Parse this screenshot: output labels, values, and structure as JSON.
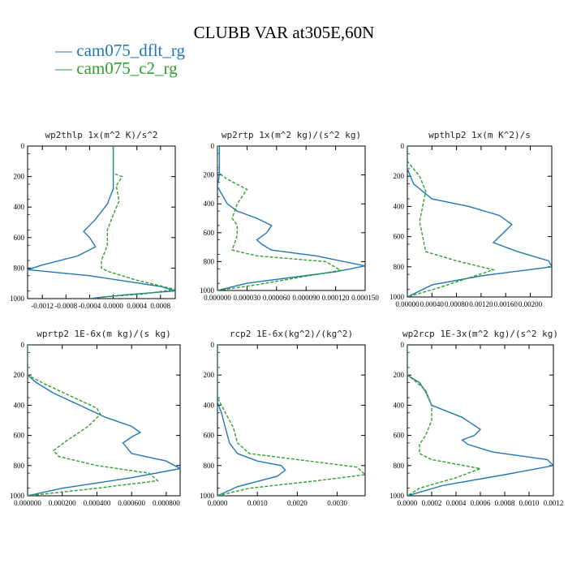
{
  "title": "CLUBB VAR at305E,60N",
  "legend": [
    {
      "label": "cam075_dflt_rg",
      "color": "#1f77b4",
      "dash": "solid"
    },
    {
      "label": "cam075_c2_rg",
      "color": "#2ca02c",
      "dash": "dashed"
    }
  ],
  "chart_data": [
    {
      "type": "line",
      "title": "wp2thlp  1x(m^2 K)/s^2",
      "xlim": [
        -0.00145,
        0.00105
      ],
      "ylim": [
        0,
        1000
      ],
      "y_inverted": true,
      "xticks": [
        -0.0012,
        -0.0008,
        -0.0004,
        0.0,
        0.0004,
        0.0008
      ],
      "xtick_labels": [
        "-0.0012",
        "-0.0008",
        "-0.0004",
        "0.0000",
        "0.0004",
        "0.0008"
      ],
      "yticks": [
        0,
        200,
        400,
        600,
        800,
        1000
      ],
      "ytick_labels": [
        "0",
        "200",
        "400",
        "600",
        "800",
        "1000"
      ],
      "series": [
        {
          "name": "cam075_dflt_rg",
          "x": [
            0.0,
            0.0,
            0.0,
            -5e-05,
            -0.0001,
            -0.0002,
            -0.0003,
            -0.0004,
            -0.0005,
            -0.0004,
            -0.0003,
            -0.0006,
            -0.0012,
            -0.00145,
            -0.0004,
            0.0008,
            0.00105,
            0.0002,
            -0.0004
          ],
          "y": [
            0,
            200,
            280,
            330,
            380,
            430,
            480,
            520,
            560,
            600,
            660,
            720,
            780,
            810,
            850,
            920,
            950,
            975,
            1000
          ]
        },
        {
          "name": "cam075_c2_rg",
          "x": [
            0.0,
            0.0,
            0.00015,
            5e-05,
            0.0001,
            0.0,
            -0.0001,
            -0.0001,
            -0.0002,
            -0.0002,
            -0.0001,
            0.0004,
            0.00105,
            0.0005,
            -0.0002
          ],
          "y": [
            0,
            180,
            200,
            260,
            360,
            450,
            550,
            650,
            750,
            800,
            820,
            880,
            940,
            970,
            990
          ]
        }
      ]
    },
    {
      "type": "line",
      "title": "wp2rtp  1x(m^2 kg)/(s^2 kg)",
      "xlim": [
        0.0,
        0.00015
      ],
      "ylim": [
        0,
        1000
      ],
      "y_inverted": true,
      "xticks": [
        0.0,
        3e-05,
        6e-05,
        9e-05,
        0.00012,
        0.00015
      ],
      "xtick_labels": [
        "0.000000",
        "0.000030",
        "0.000060",
        "0.000090",
        "0.000120",
        "0.000150"
      ],
      "yticks": [
        0,
        200,
        400,
        600,
        800,
        1000
      ],
      "ytick_labels": [
        "0",
        "200",
        "400",
        "600",
        "800",
        "1000"
      ],
      "series": [
        {
          "name": "cam075_dflt_rg",
          "x": [
            2e-06,
            2e-06,
            0.0,
            1e-05,
            2e-05,
            4e-05,
            5.5e-05,
            5e-05,
            4e-05,
            4.5e-05,
            5.5e-05,
            0.0001,
            0.00015,
            0.00012,
            3e-05,
            0.0
          ],
          "y": [
            0,
            200,
            280,
            400,
            450,
            500,
            550,
            600,
            650,
            680,
            720,
            760,
            830,
            870,
            950,
            1000
          ]
        },
        {
          "name": "cam075_c2_rg",
          "x": [
            0.0,
            0.0,
            1e-05,
            3e-05,
            2e-05,
            1.5e-05,
            2e-05,
            2e-05,
            1.5e-05,
            4e-05,
            0.00011,
            0.000125,
            4e-05,
            0.0
          ],
          "y": [
            0,
            180,
            230,
            300,
            400,
            500,
            550,
            620,
            720,
            760,
            800,
            860,
            960,
            1000
          ]
        }
      ]
    },
    {
      "type": "line",
      "title": "wpthlp2  1x(m K^2)/s",
      "xlim": [
        0.0,
        0.00235
      ],
      "ylim": [
        0,
        1000
      ],
      "y_inverted": true,
      "xticks": [
        0.0,
        0.0004,
        0.0008,
        0.0012,
        0.0016,
        0.002
      ],
      "xtick_labels": [
        "0.00000",
        "0.00040",
        "0.00080",
        "0.00120",
        "0.00160",
        "0.00200"
      ],
      "yticks": [
        0,
        200,
        400,
        600,
        800,
        1000
      ],
      "ytick_labels": [
        "0",
        "200",
        "400",
        "600",
        "800",
        "1000"
      ],
      "series": [
        {
          "name": "cam075_dflt_rg",
          "x": [
            0.0,
            0.0,
            0.0001,
            0.00025,
            0.0004,
            0.001,
            0.0015,
            0.0017,
            0.0016,
            0.0014,
            0.0018,
            0.0023,
            0.00235,
            0.0012,
            0.0004,
            0.0
          ],
          "y": [
            0,
            150,
            250,
            300,
            350,
            400,
            460,
            520,
            560,
            640,
            700,
            760,
            800,
            860,
            920,
            1000
          ]
        },
        {
          "name": "cam075_c2_rg",
          "x": [
            0.0,
            0.0,
            0.0002,
            0.0003,
            0.00025,
            0.0002,
            0.00025,
            0.0003,
            0.0008,
            0.0014,
            0.0011,
            0.0005,
            0.0
          ],
          "y": [
            0,
            100,
            200,
            300,
            400,
            500,
            600,
            700,
            760,
            820,
            860,
            940,
            1000
          ]
        }
      ]
    },
    {
      "type": "line",
      "title": "wprtp2  1E-6x(m kg)/(s kg)",
      "xlim": [
        0.0,
        0.00088
      ],
      "ylim": [
        0,
        1000
      ],
      "y_inverted": true,
      "xticks": [
        0.0,
        0.0002,
        0.0004,
        0.0006,
        0.0008
      ],
      "xtick_labels": [
        "0.000000",
        "0.000200",
        "0.000400",
        "0.000600",
        "0.000800"
      ],
      "yticks": [
        0,
        200,
        400,
        600,
        800,
        1000
      ],
      "ytick_labels": [
        "0",
        "200",
        "400",
        "600",
        "800",
        "1000"
      ],
      "series": [
        {
          "name": "cam075_dflt_rg",
          "x": [
            0.0,
            0.0,
            5e-05,
            0.00015,
            0.0003,
            0.00045,
            0.0006,
            0.00065,
            0.0006,
            0.00055,
            0.0006,
            0.0008,
            0.00088,
            0.0006,
            0.0002,
            0.0
          ],
          "y": [
            0,
            200,
            250,
            320,
            400,
            480,
            540,
            580,
            610,
            650,
            720,
            770,
            820,
            880,
            950,
            1000
          ]
        },
        {
          "name": "cam075_c2_rg",
          "x": [
            0.0,
            0.0,
            0.0001,
            0.00025,
            0.0004,
            0.00042,
            0.00035,
            0.00022,
            0.00015,
            0.00018,
            0.0004,
            0.0007,
            0.00075,
            0.0004,
            0.0
          ],
          "y": [
            0,
            200,
            260,
            340,
            420,
            460,
            540,
            640,
            700,
            740,
            800,
            850,
            900,
            950,
            1000
          ]
        }
      ]
    },
    {
      "type": "line",
      "title": "rcp2  1E-6x(kg^2)/(kg^2)",
      "xlim": [
        0.0,
        0.0037
      ],
      "ylim": [
        0,
        1000
      ],
      "y_inverted": true,
      "xticks": [
        0.0,
        0.001,
        0.002,
        0.003
      ],
      "xtick_labels": [
        "0.0000",
        "0.0010",
        "0.0020",
        "0.0030"
      ],
      "yticks": [
        0,
        200,
        400,
        600,
        800,
        1000
      ],
      "ytick_labels": [
        "0",
        "200",
        "400",
        "600",
        "800",
        "1000"
      ],
      "series": [
        {
          "name": "cam075_dflt_rg",
          "x": [
            0.0,
            0.0,
            0.0001,
            0.0002,
            0.0003,
            0.0005,
            0.001,
            0.0016,
            0.0017,
            0.0015,
            0.0005,
            0.0
          ],
          "y": [
            0,
            380,
            450,
            550,
            650,
            720,
            770,
            800,
            830,
            870,
            940,
            1000
          ]
        },
        {
          "name": "cam075_c2_rg",
          "x": [
            0.0,
            0.0,
            0.0002,
            0.0004,
            0.0005,
            0.0008,
            0.002,
            0.0035,
            0.0037,
            0.0025,
            0.0008,
            0.0
          ],
          "y": [
            0,
            350,
            450,
            550,
            650,
            720,
            760,
            810,
            860,
            900,
            950,
            1000
          ]
        }
      ]
    },
    {
      "type": "line",
      "title": "wp2rcp  1E-3x(m^2 kg)/(s^2 kg)",
      "xlim": [
        0.0,
        0.0012
      ],
      "ylim": [
        0,
        1000
      ],
      "y_inverted": true,
      "xticks": [
        0.0,
        0.0002,
        0.0004,
        0.0006,
        0.0008,
        0.001,
        0.0012
      ],
      "xtick_labels": [
        "0.0000",
        "0.0002",
        "0.0004",
        "0.0006",
        "0.0008",
        "0.0010",
        "0.0012"
      ],
      "yticks": [
        0,
        200,
        400,
        600,
        800,
        1000
      ],
      "ytick_labels": [
        "0",
        "200",
        "400",
        "600",
        "800",
        "1000"
      ],
      "series": [
        {
          "name": "cam075_dflt_rg",
          "x": [
            0.0,
            0.0,
            0.0001,
            0.00015,
            0.0002,
            0.00045,
            0.0006,
            0.00055,
            0.00045,
            0.0005,
            0.0007,
            0.00115,
            0.0012,
            0.0008,
            0.0003,
            0.0
          ],
          "y": [
            0,
            200,
            250,
            310,
            400,
            480,
            560,
            600,
            630,
            660,
            710,
            760,
            800,
            860,
            930,
            1000
          ]
        },
        {
          "name": "cam075_c2_rg",
          "x": [
            0.0,
            0.0,
            5e-05,
            0.00015,
            0.0002,
            0.0002,
            0.00015,
            0.0001,
            0.0001,
            0.0002,
            0.0006,
            0.0004,
            0.0001,
            0.0
          ],
          "y": [
            0,
            200,
            230,
            300,
            400,
            500,
            600,
            660,
            720,
            760,
            820,
            880,
            950,
            1000
          ]
        }
      ]
    }
  ]
}
